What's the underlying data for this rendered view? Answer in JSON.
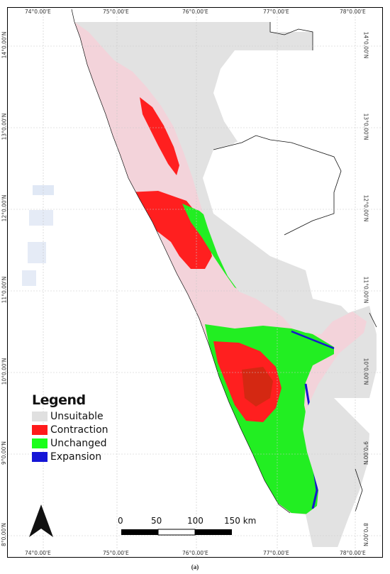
{
  "map": {
    "longitude_labels": [
      "74°0.00'E",
      "75°0.00'E",
      "76°0.00'E",
      "77°0.00'E",
      "78°0.00'E"
    ],
    "latitude_labels": [
      "14°0.00'N",
      "13°0.00'N",
      "12°0.00'N",
      "11°0.00'N",
      "10°0.00'N",
      "9°0.00'N",
      "8°0.00'N"
    ],
    "colors": {
      "unsuitable": "#e0e0e0",
      "contraction": "#ff1a1a",
      "unchanged": "#1aff1a",
      "expansion": "#1515d6",
      "suitable_other": "#f2cdd4",
      "boundary": "#000000"
    }
  },
  "legend": {
    "title": "Legend",
    "items": [
      {
        "label": "Unsuitable",
        "color": "#e0e0e0"
      },
      {
        "label": "Contraction",
        "color": "#ff1a1a"
      },
      {
        "label": "Unchanged",
        "color": "#1aff1a"
      },
      {
        "label": "Expansion",
        "color": "#1515d6"
      }
    ]
  },
  "scale_bar": {
    "labels": [
      "0",
      "50",
      "100",
      "150 km"
    ]
  },
  "north_arrow": {
    "icon": "north-arrow-icon"
  },
  "caption": "(a)"
}
